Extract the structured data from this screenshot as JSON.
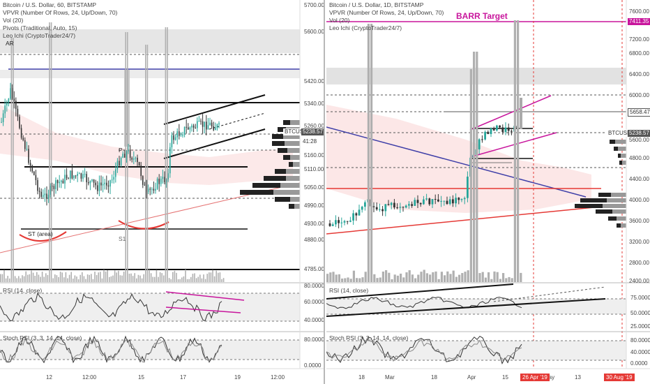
{
  "left_chart": {
    "legend": {
      "symbol": "Bitcoin / U.S. Dollar, 60, BITSTAMP",
      "vpvr": "VPVR (Number Of Rows, 24, Up/Down, 70)",
      "vol": "Vol (20)",
      "pivots": "Pivots (Traditional, Auto, 15)",
      "ichi": "Leo Ichi (CryptoTrader24/7)",
      "ar": "AR"
    },
    "price_axis": [
      "5700.00",
      "5600.00",
      "5420.00",
      "5340.00",
      "5260.00",
      "5160.00",
      "5110.00",
      "5050.00",
      "4990.00",
      "4930.00",
      "4880.00",
      "4785.00"
    ],
    "price_tags": {
      "btcusd": "BTCUSD",
      "price": "5238.57",
      "countdown": "41:28"
    },
    "annotations": {
      "st_area": "ST (area)",
      "p": "P",
      "s1": "S1"
    },
    "rsi": {
      "label": "RSI (14, close)",
      "ticks": [
        "80.0000",
        "60.0000",
        "40.0000"
      ]
    },
    "stoch": {
      "label": "Stoch RSI (3, 3, 14, 14, close)",
      "ticks": [
        "80.0000",
        "0.0000"
      ]
    },
    "time_axis": [
      "12",
      "12:00",
      "15",
      "17",
      "19",
      "12:00"
    ]
  },
  "right_chart": {
    "legend": {
      "symbol": "Bitcoin / U.S. Dollar, 1D, BITSTAMP",
      "vpvr": "VPVR (Number Of Rows, 24, Up/Down, 70)",
      "vol": "Vol (20)",
      "ichi": "Leo Ichi (CryptoTrader24/7)"
    },
    "barr_target": "BARR Target",
    "price_axis": [
      "7600.00",
      "7200.00",
      "6800.00",
      "6400.00",
      "6000.00",
      "5600.00",
      "4800.00",
      "4400.00",
      "4000.00",
      "3600.00",
      "3200.00",
      "2800.00",
      "2400.00"
    ],
    "price_tags": {
      "target": "7411.35",
      "level": "5658.47",
      "btcusd": "BTCUSD",
      "price": "5238.57"
    },
    "rsi": {
      "label": "RSI (14, close)",
      "ticks": [
        "75.0000",
        "50.0000",
        "25.0000"
      ]
    },
    "stoch": {
      "label": "Stoch RSI (3, 3, 14, 14, close)",
      "ticks": [
        "80.0000",
        "40.0000",
        "0.0000"
      ]
    },
    "time_axis": [
      "18",
      "Mar",
      "18",
      "Apr",
      "15",
      "May",
      "13"
    ],
    "date_markers": [
      "26 Apr '19",
      "30 Aug '19"
    ]
  },
  "colors": {
    "up": "#26a69a",
    "down": "#333333",
    "magenta": "#c8159c",
    "red": "#e53935",
    "blue": "#3f3fa8"
  }
}
